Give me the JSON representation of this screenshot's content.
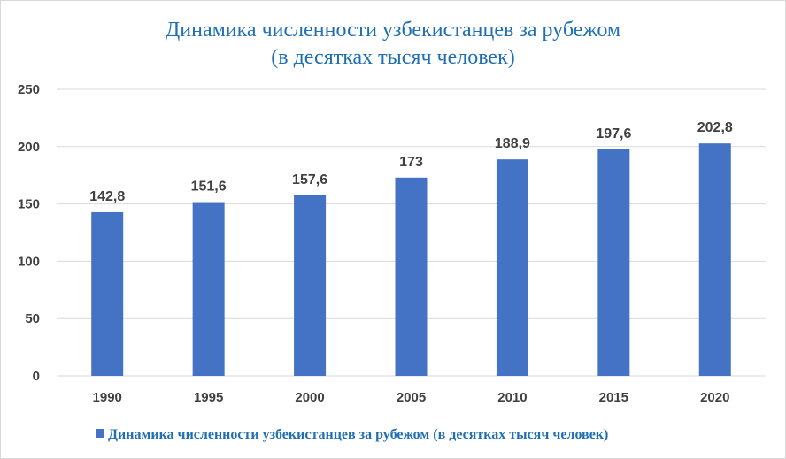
{
  "chart_data": {
    "type": "bar",
    "title": "Динамика численности узбекистанцев за рубежом",
    "subtitle": "(в десятках тысяч человек)",
    "categories": [
      "1990",
      "1995",
      "2000",
      "2005",
      "2010",
      "2015",
      "2020"
    ],
    "series": [
      {
        "name": "Динамика численности узбекистанцев за рубежом (в десятках тысяч человек)",
        "values": [
          142.8,
          151.6,
          157.6,
          173,
          188.9,
          197.6,
          202.8
        ],
        "labels": [
          "142,8",
          "151,6",
          "157,6",
          "173",
          "188,9",
          "197,6",
          "202,8"
        ],
        "color": "#4472c4"
      }
    ],
    "ylim": [
      0,
      250
    ],
    "yticks": [
      0,
      50,
      100,
      150,
      200,
      250
    ],
    "grid": true,
    "legend_position": "bottom",
    "xlabel": "",
    "ylabel": ""
  },
  "colors": {
    "bar": "#4472c4",
    "title": "#1f6fb2",
    "grid": "#d9d9d9",
    "axis_text": "#404040"
  }
}
